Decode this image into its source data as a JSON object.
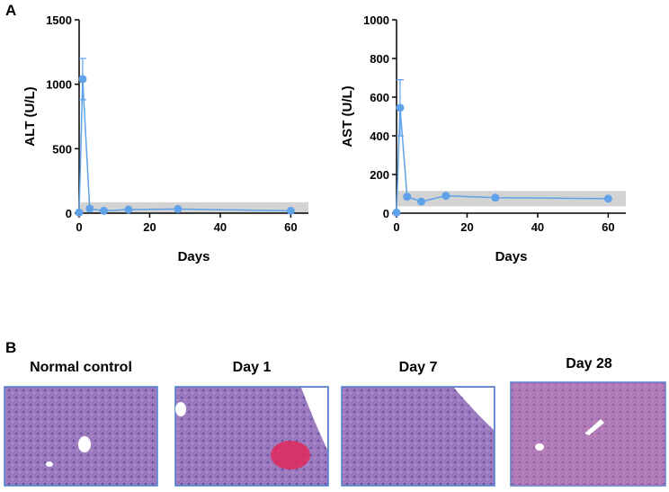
{
  "panel_labels": [
    "A",
    "B"
  ],
  "chart_data": [
    {
      "type": "line",
      "ylabel": "ALT (U/L)",
      "xlabel": "Days",
      "x": [
        0,
        1,
        3,
        7,
        14,
        28,
        60
      ],
      "series": [
        {
          "color": "#5fa2ea",
          "values": [
            5,
            1040,
            35,
            18,
            28,
            32,
            18
          ],
          "errors": [
            null,
            160,
            null,
            null,
            null,
            null,
            null
          ]
        }
      ],
      "reference_range": [
        0,
        85
      ],
      "xlim": [
        0,
        65
      ],
      "xticks": [
        0,
        20,
        40,
        60
      ],
      "ylim": [
        0,
        1500
      ],
      "yticks": [
        0,
        500,
        1000,
        1500
      ]
    },
    {
      "type": "line",
      "ylabel": "AST (U/L)",
      "xlabel": "Days",
      "x": [
        0,
        1,
        3,
        7,
        14,
        28,
        60
      ],
      "series": [
        {
          "color": "#5fa2ea",
          "values": [
            3,
            545,
            85,
            60,
            90,
            80,
            75
          ],
          "errors": [
            null,
            145,
            null,
            null,
            null,
            null,
            null
          ]
        }
      ],
      "reference_range": [
        35,
        115
      ],
      "xlim": [
        0,
        65
      ],
      "xticks": [
        0,
        20,
        40,
        60
      ],
      "ylim": [
        0,
        1000
      ],
      "yticks": [
        0,
        200,
        400,
        600,
        800,
        1000
      ]
    }
  ],
  "images": [
    {
      "caption": "Normal control"
    },
    {
      "caption": "Day 1"
    },
    {
      "caption": "Day 7"
    },
    {
      "caption": "Day 28"
    }
  ]
}
